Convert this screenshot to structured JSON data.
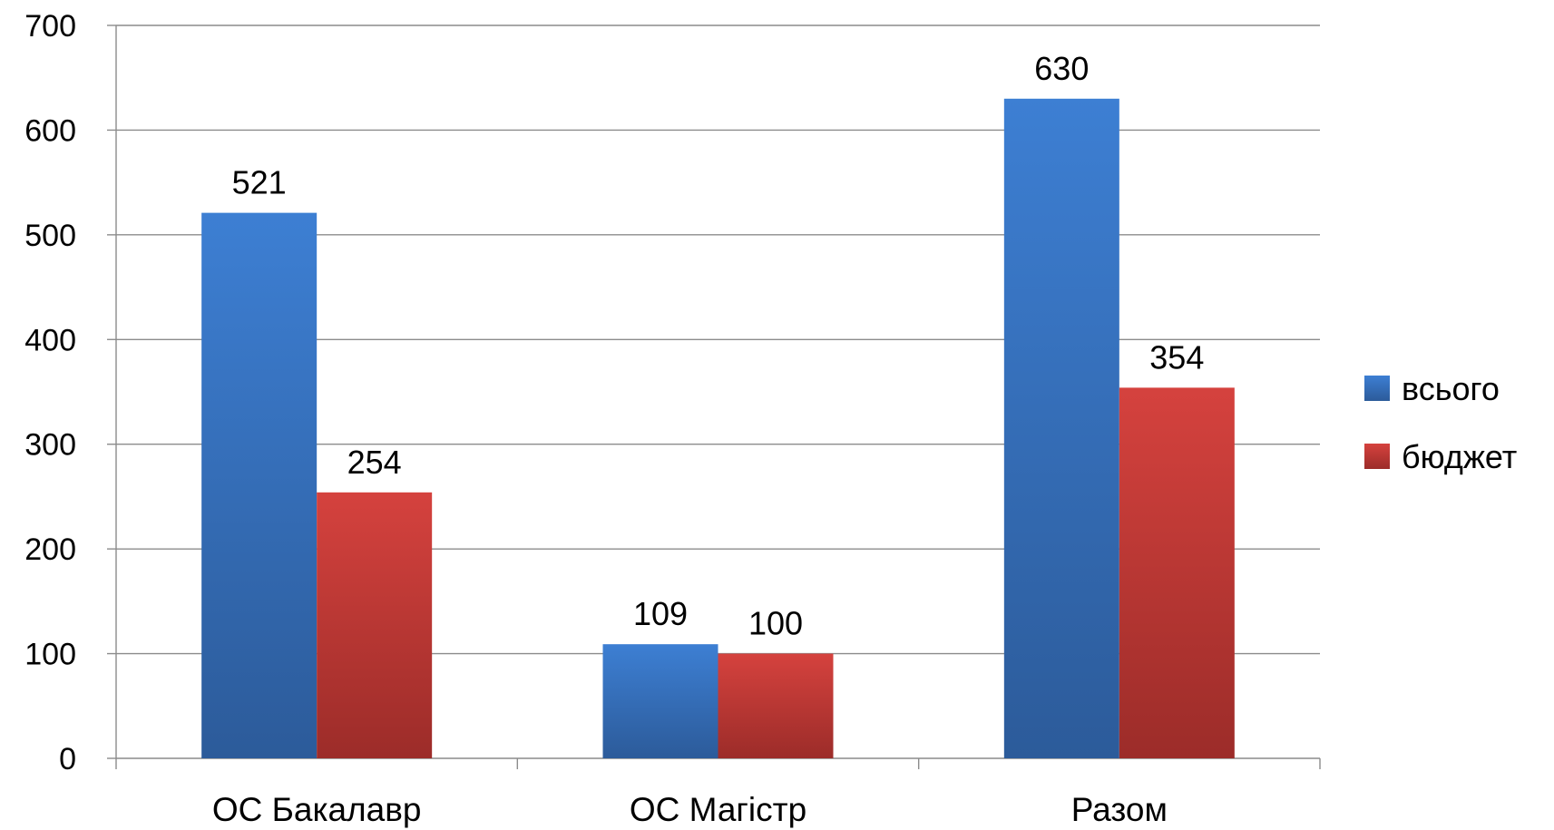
{
  "chart_data": {
    "type": "bar",
    "categories": [
      "ОС Бакалавр",
      "ОС Магістр",
      "Разом"
    ],
    "series": [
      {
        "name": "всього",
        "values": [
          521,
          109,
          630
        ],
        "color": "#3a75c4"
      },
      {
        "name": "бюджет",
        "values": [
          254,
          100,
          354
        ],
        "color": "#c83a37"
      }
    ],
    "ylim": [
      0,
      700
    ],
    "yticks": [
      "0",
      "100",
      "200",
      "300",
      "400",
      "500",
      "600",
      "700"
    ],
    "grid": true,
    "legend": "right",
    "data_labels": true
  }
}
